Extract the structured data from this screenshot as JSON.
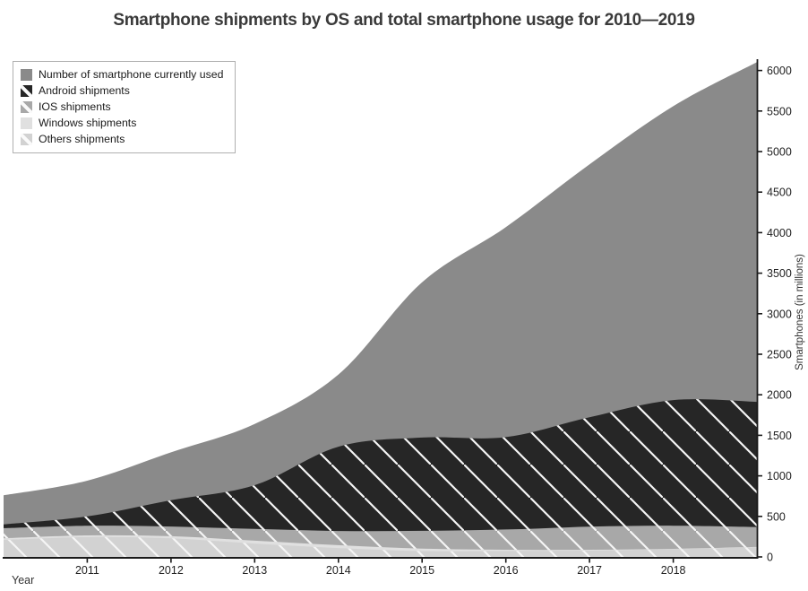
{
  "title": "Smartphone shipments by OS and total smartphone usage for 2010—2019",
  "chart_data": {
    "type": "area",
    "stacked": true,
    "title": "Smartphone shipments by OS and total smartphone usage for 2010—2019",
    "xlabel": "Year",
    "ylabel": "Smartphones (in millions)",
    "x": [
      2010,
      2011,
      2012,
      2013,
      2014,
      2015,
      2016,
      2017,
      2018,
      2019
    ],
    "xticks": [
      2011,
      2012,
      2013,
      2014,
      2015,
      2016,
      2017,
      2018
    ],
    "yticks": [
      0,
      500,
      1000,
      1500,
      2000,
      2500,
      3000,
      3500,
      4000,
      4500,
      5000,
      5500,
      6000
    ],
    "ylim": [
      0,
      6160
    ],
    "grid": false,
    "legend_position": "upper left",
    "hatch_color": "#f5f5f5",
    "hatch_style": "backslash-diagonal",
    "axis_color": "#1a1a1a",
    "series": [
      {
        "name": "others",
        "label": "Others shipments",
        "color": "#d2d2d2",
        "hatch": true,
        "values": [
          210,
          245,
          230,
          165,
          110,
          72,
          73,
          78,
          95,
          120
        ]
      },
      {
        "name": "windows",
        "label": "Windows shipments",
        "color": "#e0e0e0",
        "hatch": false,
        "values": [
          20,
          20,
          25,
          35,
          35,
          30,
          15,
          10,
          5,
          3
        ]
      },
      {
        "name": "ios",
        "label": "IOS shipments",
        "color": "#a8a8a8",
        "hatch": true,
        "values": [
          125,
          120,
          120,
          145,
          175,
          220,
          250,
          285,
          285,
          245
        ]
      },
      {
        "name": "android",
        "label": "Android shipments",
        "color": "#262626",
        "hatch": true,
        "values": [
          45,
          115,
          325,
          540,
          1040,
          1150,
          1140,
          1350,
          1550,
          1545
        ]
      },
      {
        "name": "usage",
        "label": "Number of smartphone currently used",
        "color": "#8a8a8a",
        "hatch": false,
        "values": [
          360,
          440,
          590,
          755,
          890,
          1915,
          2590,
          3120,
          3625,
          4190
        ]
      }
    ],
    "legend_order": [
      "usage",
      "android",
      "ios",
      "windows",
      "others"
    ]
  }
}
